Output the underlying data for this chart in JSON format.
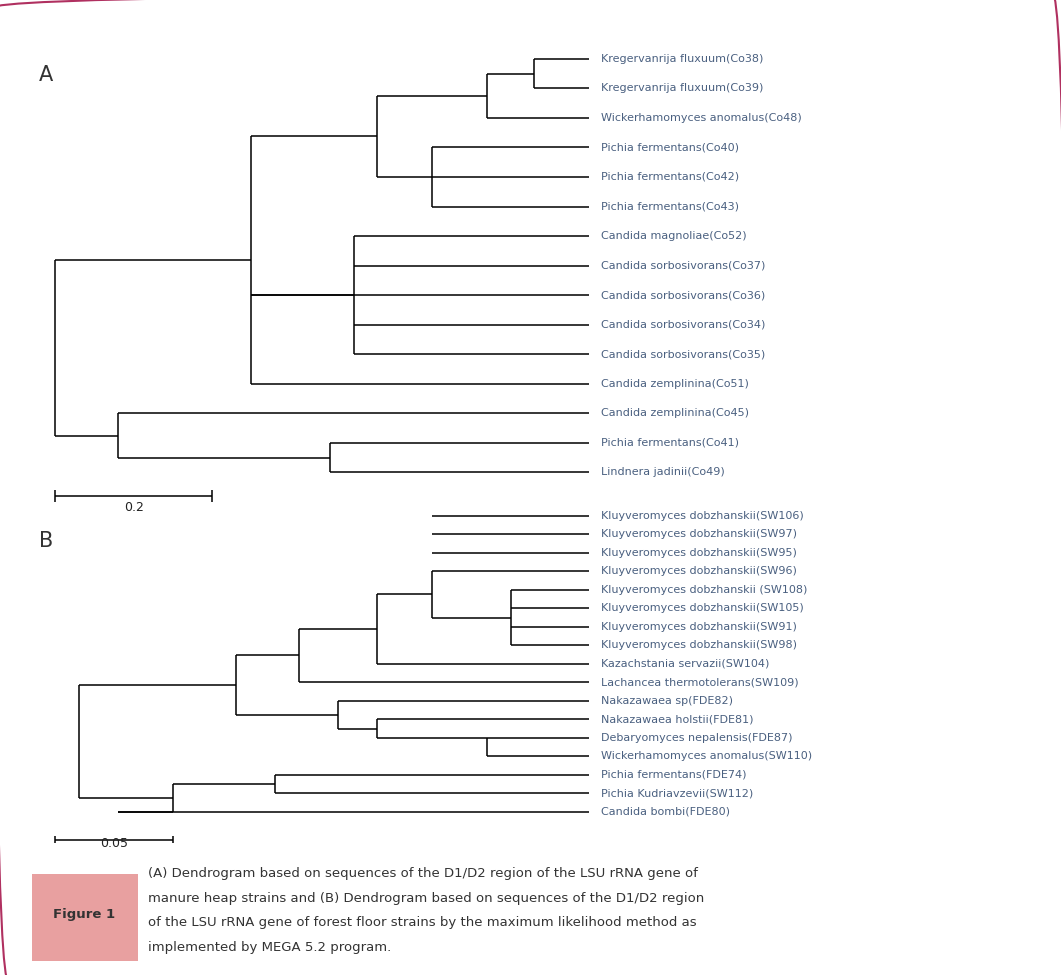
{
  "figsize": [
    10.61,
    9.75
  ],
  "bg_color": "#ffffff",
  "border_color": "#b03060",
  "leaf_color": "#4a6080",
  "line_color": "#000000",
  "treeA_leaves": [
    "Kregervanrija fluxuum(Co38)",
    "Kregervanrija fluxuum(Co39)",
    "Wickerhamomyces anomalus(Co48)",
    "Pichia fermentans(Co40)",
    "Pichia fermentans(Co42)",
    "Pichia fermentans(Co43)",
    "Candida magnoliae(Co52)",
    "Candida sorbosivorans(Co37)",
    "Candida sorbosivorans(Co36)",
    "Candida sorbosivorans(Co34)",
    "Candida sorbosivorans(Co35)",
    "Candida zemplinina(Co51)",
    "Candida zemplinina(Co45)",
    "Pichia fermentans(Co41)",
    "Lindnera jadinii(Co49)"
  ],
  "treeB_leaves": [
    "Kluyveromyces dobzhanskii(SW106)",
    "Kluyveromyces dobzhanskii(SW97)",
    "Kluyveromyces dobzhanskii(SW95)",
    "Kluyveromyces dobzhanskii(SW96)",
    "Kluyveromyces dobzhanskii (SW108)",
    "Kluyveromyces dobzhanskii(SW105)",
    "Kluyveromyces dobzhanskii(SW91)",
    "Kluyveromyces dobzhanskii(SW98)",
    "Kazachstania servazii(SW104)",
    "Lachancea thermotolerans(SW109)",
    "Nakazawaea sp(FDE82)",
    "Nakazawaea holstii(FDE81)",
    "Debaryomyces nepalensis(FDE87)",
    "Wickerhamomyces anomalus(SW110)",
    "Pichia fermentans(FDE74)",
    "Pichia Kudriavzevii(SW112)",
    "Candida bombi(FDE80)"
  ],
  "caption_label": "Figure 1",
  "caption_label_bg": "#e8a0a0",
  "caption_text": "(A) Dendrogram based on sequences of the D1/D2 region of the LSU rRNA gene of manure heap strains and (B) Dendrogram based on sequences of the D1/D2 region of the LSU rRNA gene of forest floor strains by the maximum likelihood method as implemented by MEGA 5.2 program.",
  "leaf_fontsize": 8.0,
  "caption_fontsize": 9.5
}
